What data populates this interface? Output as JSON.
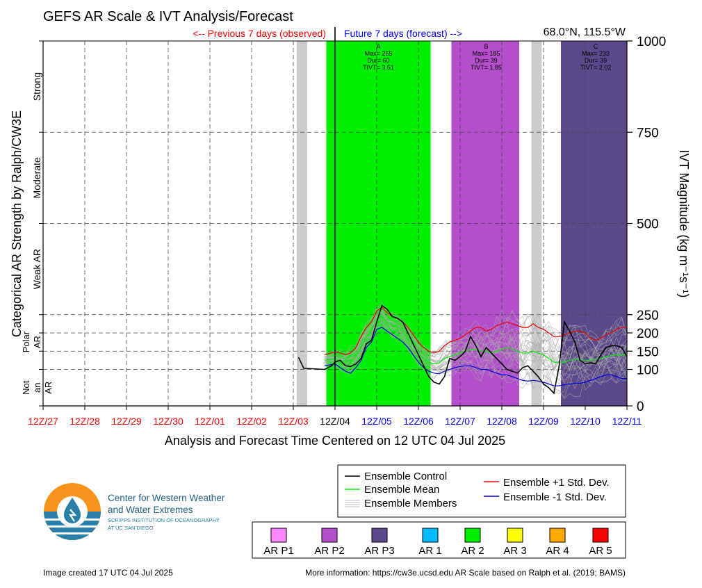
{
  "header": {
    "title": "GEFS AR Scale & IVT Analysis/Forecast",
    "prev_label": "<-- Previous 7 days (observed)",
    "future_label": "Future 7 days (forecast) -->",
    "location": "68.0°N, 115.5°W"
  },
  "colors": {
    "observed_red": "#ff0000",
    "forecast_blue": "#0000ff",
    "control": "#000000",
    "mean": "#00ee00",
    "plus_std": "#ee0000",
    "minus_std": "#0000dd",
    "members": "#aaaaaa",
    "shade_grey": "#cccccc",
    "shade_p2": "#b44fcc",
    "shade_ar2": "#00ee00",
    "shade_p3": "#5a4a8c"
  },
  "chart_data": {
    "type": "line",
    "title": "GEFS AR Scale & IVT Analysis/Forecast",
    "xlabel": "Analysis and Forecast Time Centered on 12 UTC 04 Jul 2025",
    "ylabel": "IVT Magnitude (kg m⁻¹s⁻¹)",
    "left_ylabel": "Categorical AR Strength by Ralph/CW3E",
    "xlim": [
      0,
      336
    ],
    "ylim": [
      0,
      1000
    ],
    "x_unit_hours_from_12Z_27": true,
    "yticks": [
      0,
      100,
      150,
      200,
      250,
      500,
      750,
      1000
    ],
    "xticks": [
      {
        "label": "12Z/27",
        "hour": 0,
        "period": "observed"
      },
      {
        "label": "12Z/28",
        "hour": 24,
        "period": "observed"
      },
      {
        "label": "12Z/29",
        "hour": 48,
        "period": "observed"
      },
      {
        "label": "12Z/30",
        "hour": 72,
        "period": "observed"
      },
      {
        "label": "12Z/01",
        "hour": 96,
        "period": "observed"
      },
      {
        "label": "12Z/02",
        "hour": 120,
        "period": "observed"
      },
      {
        "label": "12Z/03",
        "hour": 144,
        "period": "observed"
      },
      {
        "label": "12Z/04",
        "hour": 168,
        "period": "current"
      },
      {
        "label": "12Z/05",
        "hour": 192,
        "period": "forecast"
      },
      {
        "label": "12Z/06",
        "hour": 216,
        "period": "forecast"
      },
      {
        "label": "12Z/07",
        "hour": 240,
        "period": "forecast"
      },
      {
        "label": "12Z/08",
        "hour": 264,
        "period": "forecast"
      },
      {
        "label": "12Z/09",
        "hour": 288,
        "period": "forecast"
      },
      {
        "label": "12Z/10",
        "hour": 312,
        "period": "forecast"
      },
      {
        "label": "12Z/11",
        "hour": 336,
        "period": "forecast"
      }
    ],
    "categories": [
      {
        "label": "Strong",
        "ymin": 750,
        "ymax": 1000
      },
      {
        "label": "Moderate",
        "ymin": 500,
        "ymax": 750
      },
      {
        "label": "Weak AR",
        "ymin": 250,
        "ymax": 500
      },
      {
        "label": "Polar AR",
        "ymin": 100,
        "ymax": 250
      },
      {
        "label": "Not an AR",
        "ymin": 0,
        "ymax": 100
      }
    ],
    "shading": [
      {
        "x0": 146,
        "x1": 152,
        "color": "shade_grey"
      },
      {
        "x0": 163,
        "x1": 223,
        "color": "shade_ar2"
      },
      {
        "x0": 235,
        "x1": 274,
        "color": "shade_p2"
      },
      {
        "x0": 281,
        "x1": 287,
        "color": "shade_grey"
      },
      {
        "x0": 298,
        "x1": 336,
        "color": "shade_p3"
      }
    ],
    "events": [
      {
        "label": "A",
        "max": "Max= 265",
        "dur": "Dur= 60",
        "tivt": "TIVT= 3.51",
        "x": 193
      },
      {
        "label": "B",
        "max": "Max= 185",
        "dur": "Dur= 39",
        "tivt": "TIVT= 1.85",
        "x": 255
      },
      {
        "label": "C",
        "max": "Max= 233",
        "dur": "Dur= 39",
        "tivt": "TIVT= 2.02",
        "x": 318
      }
    ],
    "now_hour": 168,
    "series": [
      {
        "name": "Ensemble Control",
        "color": "control",
        "x": [
          147,
          150,
          162,
          166,
          168,
          171,
          174,
          177,
          180,
          183,
          186,
          189,
          192,
          195,
          198,
          201,
          204,
          207,
          210,
          213,
          216,
          219,
          222,
          225,
          228,
          231,
          234,
          237,
          240,
          243,
          246,
          249,
          252,
          255,
          258,
          261,
          264,
          267,
          270,
          273,
          276,
          279,
          282,
          285,
          288,
          291,
          294,
          297,
          300,
          303,
          306,
          309,
          312,
          315,
          318,
          321,
          324,
          327,
          330,
          333,
          336
        ],
        "y": [
          133,
          103,
          100,
          110,
          120,
          125,
          110,
          108,
          115,
          130,
          170,
          180,
          230,
          275,
          265,
          245,
          240,
          230,
          200,
          170,
          140,
          110,
          80,
          65,
          60,
          80,
          130,
          125,
          135,
          150,
          190,
          165,
          135,
          160,
          145,
          130,
          115,
          100,
          95,
          90,
          105,
          110,
          95,
          80,
          60,
          50,
          35,
          110,
          230,
          205,
          175,
          125,
          115,
          118,
          115,
          140,
          160,
          165,
          165,
          160,
          135
        ]
      },
      {
        "name": "Ensemble Mean",
        "color": "mean",
        "x": [
          162,
          168,
          171,
          174,
          177,
          180,
          183,
          186,
          189,
          192,
          195,
          198,
          201,
          204,
          207,
          210,
          213,
          216,
          219,
          222,
          225,
          228,
          231,
          234,
          237,
          240,
          243,
          246,
          249,
          252,
          255,
          258,
          261,
          264,
          267,
          270,
          273,
          276,
          279,
          282,
          285,
          288,
          291,
          294,
          297,
          300,
          303,
          306,
          309,
          312,
          315,
          318,
          321,
          324,
          327,
          330,
          333,
          336
        ],
        "y": [
          125,
          130,
          125,
          120,
          125,
          135,
          160,
          190,
          205,
          240,
          245,
          230,
          220,
          215,
          205,
          185,
          165,
          145,
          130,
          120,
          115,
          118,
          130,
          135,
          140,
          145,
          150,
          155,
          155,
          150,
          150,
          145,
          150,
          155,
          160,
          155,
          150,
          145,
          145,
          150,
          145,
          140,
          130,
          120,
          118,
          120,
          125,
          128,
          128,
          125,
          125,
          128,
          130,
          135,
          138,
          140,
          140,
          140
        ]
      },
      {
        "name": "Ensemble +1 Std. Dev.",
        "color": "plus_std",
        "x": [
          162,
          168,
          171,
          174,
          177,
          180,
          183,
          186,
          189,
          192,
          195,
          198,
          201,
          204,
          207,
          210,
          213,
          216,
          219,
          222,
          225,
          228,
          231,
          234,
          237,
          240,
          243,
          246,
          249,
          252,
          255,
          258,
          261,
          264,
          267,
          270,
          273,
          276,
          279,
          282,
          285,
          288,
          291,
          294,
          297,
          300,
          303,
          306,
          309,
          312,
          315,
          318,
          321,
          324,
          327,
          330,
          333,
          336
        ],
        "y": [
          140,
          148,
          145,
          140,
          145,
          160,
          190,
          215,
          230,
          260,
          270,
          255,
          245,
          240,
          230,
          215,
          195,
          175,
          160,
          150,
          145,
          150,
          165,
          175,
          180,
          185,
          195,
          205,
          215,
          215,
          205,
          210,
          220,
          225,
          230,
          225,
          220,
          215,
          215,
          225,
          215,
          210,
          200,
          190,
          190,
          195,
          200,
          205,
          205,
          200,
          185,
          180,
          185,
          195,
          200,
          210,
          215,
          215
        ]
      },
      {
        "name": "Ensemble -1 Std. Dev.",
        "color": "minus_std",
        "x": [
          162,
          168,
          171,
          174,
          177,
          180,
          183,
          186,
          189,
          192,
          195,
          198,
          201,
          204,
          207,
          210,
          213,
          216,
          219,
          222,
          225,
          228,
          231,
          234,
          237,
          240,
          243,
          246,
          249,
          252,
          255,
          258,
          261,
          264,
          267,
          270,
          273,
          276,
          279,
          282,
          285,
          288,
          291,
          294,
          297,
          300,
          303,
          306,
          309,
          312,
          315,
          318,
          321,
          324,
          327,
          330,
          333,
          336
        ],
        "y": [
          110,
          115,
          105,
          95,
          90,
          105,
          125,
          160,
          175,
          210,
          215,
          205,
          195,
          185,
          175,
          160,
          140,
          120,
          105,
          95,
          90,
          88,
          95,
          100,
          105,
          108,
          110,
          110,
          105,
          100,
          100,
          95,
          90,
          85,
          85,
          80,
          75,
          70,
          68,
          70,
          68,
          65,
          60,
          55,
          55,
          58,
          60,
          62,
          62,
          65,
          70,
          75,
          80,
          85,
          85,
          80,
          75,
          75
        ]
      }
    ],
    "members": {
      "name": "Ensemble Members",
      "color": "members",
      "count": 30
    }
  },
  "legends": {
    "lines": [
      {
        "label": "Ensemble Control",
        "color": "#000000"
      },
      {
        "label": "Ensemble Mean",
        "color": "#00ee00"
      },
      {
        "label": "Ensemble Members",
        "color": "#aaaaaa"
      },
      {
        "label": "Ensemble +1 Std. Dev.",
        "color": "#ee0000"
      },
      {
        "label": "Ensemble -1 Std. Dev.",
        "color": "#0000dd"
      }
    ],
    "scale": [
      {
        "label": "AR P1",
        "color": "#ff88ff"
      },
      {
        "label": "AR P2",
        "color": "#b44fcc"
      },
      {
        "label": "AR P3",
        "color": "#5a4a8c"
      },
      {
        "label": "AR 1",
        "color": "#00bbff"
      },
      {
        "label": "AR 2",
        "color": "#00ee00"
      },
      {
        "label": "AR 3",
        "color": "#ffff00"
      },
      {
        "label": "AR 4",
        "color": "#ffaa00"
      },
      {
        "label": "AR 5",
        "color": "#ff0000"
      }
    ]
  },
  "logo": {
    "line1": "Center for Western Weather",
    "line2": "and Water Extremes",
    "line3": "SCRIPPS INSTITUTION OF OCEANOGRAPHY",
    "line4": "AT UC SAN DIEGO"
  },
  "footer": {
    "created": "Image created 17 UTC 04 Jul 2025",
    "more_info": "More information: https://cw3e.ucsd.edu AR Scale based on Ralph et al. (2019; BAMS)"
  }
}
